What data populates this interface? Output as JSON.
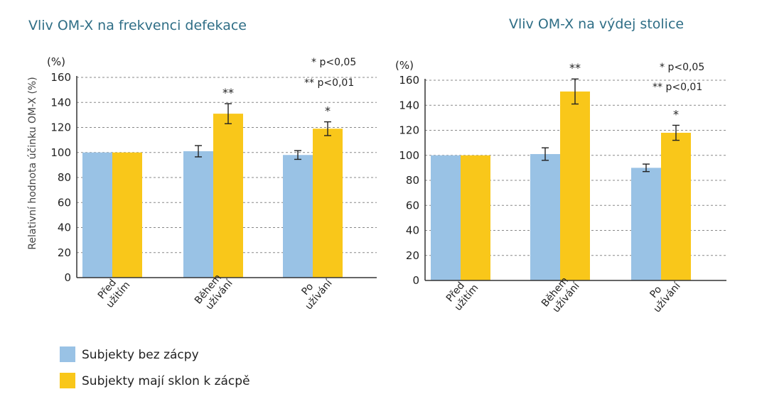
{
  "colors": {
    "series_a": "#99c2e5",
    "series_b": "#f9c71a",
    "title": "#2f6e86",
    "axis": "#333333",
    "grid": "#888888"
  },
  "chart_data": [
    {
      "type": "bar",
      "title": "Vliv OM-X na frekvenci defekace",
      "ylabel": "Relativní hodnota účinku OM-X (%)",
      "unit_label": "(%)",
      "ylim": [
        0,
        160
      ],
      "yticks": [
        "0",
        "20",
        "40",
        "60",
        "80",
        "100",
        "120",
        "140",
        "160"
      ],
      "grid": true,
      "categories": [
        [
          "Před",
          "užitím"
        ],
        [
          "Během",
          "užívání"
        ],
        [
          "Po",
          "užívání"
        ]
      ],
      "series": [
        {
          "name": "Subjekty bez zácpy",
          "values": [
            100,
            101,
            98
          ],
          "errors": [
            0,
            4.5,
            3.5
          ]
        },
        {
          "name": "Subjekty mají sklon k zácpě",
          "values": [
            100,
            131,
            119
          ],
          "errors": [
            0,
            8,
            5.5
          ]
        }
      ],
      "annotations": [
        {
          "category": 1,
          "series": 1,
          "text": "**"
        },
        {
          "category": 2,
          "series": 1,
          "text": "*"
        }
      ],
      "significance_note": [
        "* p<0,05",
        "** p<0,01"
      ]
    },
    {
      "type": "bar",
      "title": "Vliv OM-X na výdej stolice",
      "ylabel": "",
      "unit_label": "(%)",
      "ylim": [
        0,
        160
      ],
      "yticks": [
        "0",
        "20",
        "40",
        "60",
        "80",
        "100",
        "120",
        "140",
        "160"
      ],
      "grid": true,
      "categories": [
        [
          "Před",
          "užitím"
        ],
        [
          "Během",
          "užívání"
        ],
        [
          "Po",
          "užívání"
        ]
      ],
      "series": [
        {
          "name": "Subjekty bez zácpy",
          "values": [
            100,
            101,
            90
          ],
          "errors": [
            0,
            5,
            3
          ]
        },
        {
          "name": "Subjekty mají sklon k zácpě",
          "values": [
            100,
            151,
            118
          ],
          "errors": [
            0,
            10,
            6
          ]
        }
      ],
      "annotations": [
        {
          "category": 1,
          "series": 1,
          "text": "**"
        },
        {
          "category": 2,
          "series": 1,
          "text": "*"
        }
      ],
      "significance_note": [
        "* p<0,05",
        "** p<0,01"
      ]
    }
  ],
  "legend": [
    {
      "label": "Subjekty bez zácpy"
    },
    {
      "label": "Subjekty mají sklon k zácpě"
    }
  ]
}
